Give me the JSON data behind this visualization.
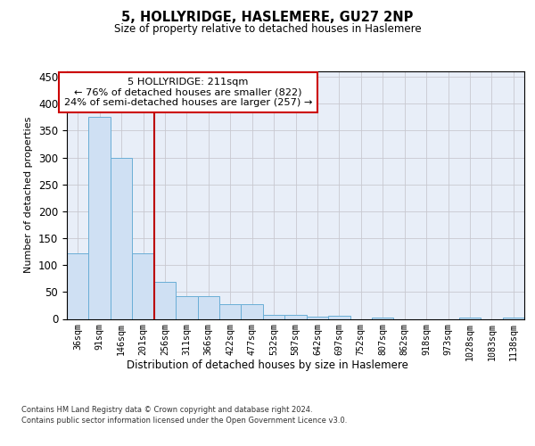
{
  "title": "5, HOLLYRIDGE, HASLEMERE, GU27 2NP",
  "subtitle": "Size of property relative to detached houses in Haslemere",
  "xlabel": "Distribution of detached houses by size in Haslemere",
  "ylabel": "Number of detached properties",
  "bar_labels": [
    "36sqm",
    "91sqm",
    "146sqm",
    "201sqm",
    "256sqm",
    "311sqm",
    "366sqm",
    "422sqm",
    "477sqm",
    "532sqm",
    "587sqm",
    "642sqm",
    "697sqm",
    "752sqm",
    "807sqm",
    "862sqm",
    "918sqm",
    "973sqm",
    "1028sqm",
    "1083sqm",
    "1138sqm"
  ],
  "bar_values": [
    122,
    375,
    300,
    122,
    68,
    42,
    42,
    28,
    28,
    8,
    8,
    4,
    6,
    0,
    3,
    0,
    0,
    0,
    2,
    0,
    3
  ],
  "bar_color": "#cfe0f3",
  "bar_edge_color": "#6aaed6",
  "grid_color": "#c8c8d0",
  "background_color": "#e8eef8",
  "vline_x": 3.5,
  "vline_color": "#bb0000",
  "annotation_text": "5 HOLLYRIDGE: 211sqm\n← 76% of detached houses are smaller (822)\n24% of semi-detached houses are larger (257) →",
  "annotation_box_color": "#ffffff",
  "annotation_box_edge": "#cc0000",
  "ylim": [
    0,
    460
  ],
  "yticks": [
    0,
    50,
    100,
    150,
    200,
    250,
    300,
    350,
    400,
    450
  ],
  "footer_line1": "Contains HM Land Registry data © Crown copyright and database right 2024.",
  "footer_line2": "Contains public sector information licensed under the Open Government Licence v3.0."
}
